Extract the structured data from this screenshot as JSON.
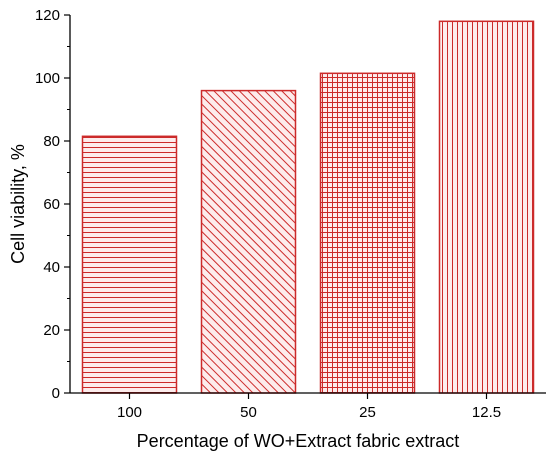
{
  "chart_data": {
    "type": "bar",
    "title": "",
    "xlabel": "Percentage of WO+Extract fabric extract",
    "ylabel": "Cell viability, %",
    "categories": [
      "100",
      "50",
      "25",
      "12.5"
    ],
    "values": [
      81.5,
      96,
      101.5,
      118
    ],
    "ylim": [
      0,
      120
    ],
    "yticks": [
      "0",
      "20",
      "40",
      "60",
      "80",
      "100",
      "120"
    ],
    "patterns": [
      "horizontal-lines",
      "diagonal-lines",
      "grid",
      "vertical-lines"
    ],
    "grid": false,
    "legend": "none",
    "colors": {
      "bar_stroke": "#cc2a2a",
      "bar_fill": "#fdecec",
      "axis": "#000000"
    }
  }
}
